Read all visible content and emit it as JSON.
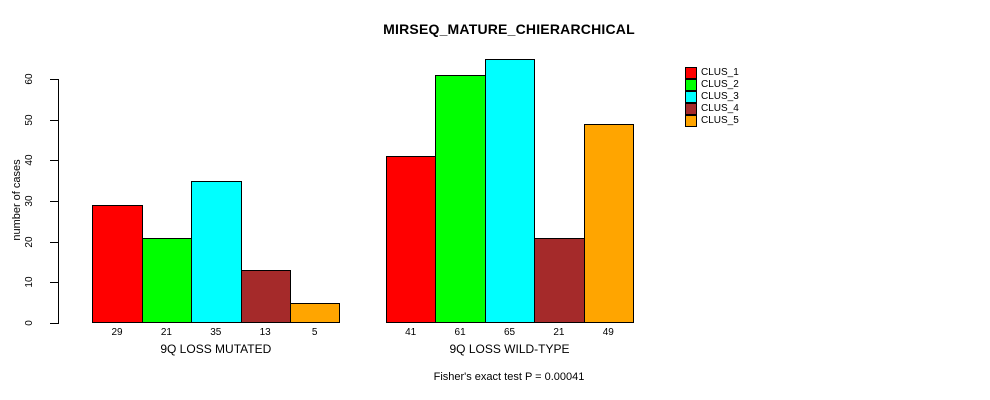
{
  "chart_data": {
    "type": "bar",
    "title": "MIRSEQ_MATURE_CHIERARCHICAL",
    "ylabel": "number of cases",
    "xlabel": "",
    "caption": "Fisher's exact test P = 0.00041",
    "yticks": [
      0,
      10,
      20,
      30,
      40,
      50,
      60
    ],
    "ylim": [
      0,
      65
    ],
    "grid": false,
    "legend_position": "top-right",
    "bar_value_labels_shown": true,
    "series": [
      {
        "name": "CLUS_1",
        "color": "#FF0000"
      },
      {
        "name": "CLUS_2",
        "color": "#00FF00"
      },
      {
        "name": "CLUS_3",
        "color": "#00FFFF"
      },
      {
        "name": "CLUS_4",
        "color": "#A52A2A"
      },
      {
        "name": "CLUS_5",
        "color": "#FFA500"
      }
    ],
    "groups": [
      {
        "label": "9Q LOSS MUTATED",
        "values": [
          29,
          21,
          35,
          13,
          5
        ]
      },
      {
        "label": "9Q LOSS WILD-TYPE",
        "values": [
          41,
          61,
          65,
          21,
          49
        ]
      }
    ]
  }
}
